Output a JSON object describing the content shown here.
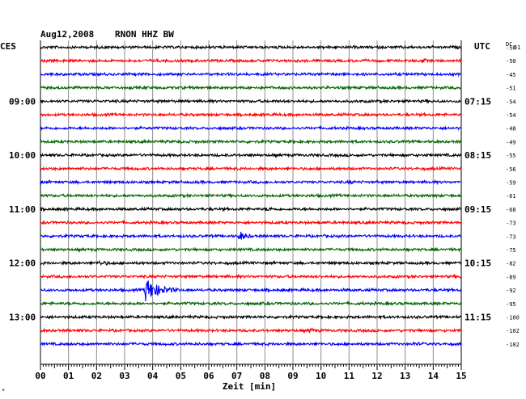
{
  "chart_data": {
    "type": "line",
    "title": "Aug12,2008",
    "station": "RNON HHZ BW",
    "left_label": "CES",
    "right_label": "UTC",
    "dc_label": "DC",
    "dc_sub": "51",
    "xlabel": "Zeit [min]",
    "xlim": [
      0,
      15
    ],
    "x_ticks": [
      "00",
      "01",
      "02",
      "03",
      "04",
      "05",
      "06",
      "07",
      "08",
      "09",
      "10",
      "11",
      "12",
      "13",
      "14",
      "15"
    ],
    "grid": true,
    "row_colors": [
      "#000000",
      "#ff0000",
      "#0000ff",
      "#006400"
    ],
    "left_hour_labels": [
      {
        "row": 4,
        "text": "09:00"
      },
      {
        "row": 8,
        "text": "10:00"
      },
      {
        "row": 12,
        "text": "11:00"
      },
      {
        "row": 16,
        "text": "12:00"
      },
      {
        "row": 20,
        "text": "13:00"
      }
    ],
    "right_hour_labels": [
      {
        "row": 4,
        "text": "07:15"
      },
      {
        "row": 8,
        "text": "08:15"
      },
      {
        "row": 12,
        "text": "09:15"
      },
      {
        "row": 16,
        "text": "10:15"
      },
      {
        "row": 20,
        "text": "11:15"
      }
    ],
    "dc_values": [
      "-50",
      "-50",
      "-45",
      "-51",
      "-54",
      "-54",
      "-48",
      "-49",
      "-55",
      "-56",
      "-59",
      "-61",
      "-68",
      "-73",
      "-73",
      "-75",
      "-82",
      "-89",
      "-92",
      "-95",
      "-100",
      "-102",
      "-102"
    ],
    "events": [
      {
        "row": 1,
        "minute": 13.6,
        "amplitude": 2.0,
        "duration_min": 0.4
      },
      {
        "row": 10,
        "minute": 11.0,
        "amplitude": 1.3,
        "duration_min": 0.3
      },
      {
        "row": 12,
        "minute": 8.1,
        "amplitude": 1.6,
        "duration_min": 0.3
      },
      {
        "row": 14,
        "minute": 7.1,
        "amplitude": 5.5,
        "duration_min": 0.5
      },
      {
        "row": 16,
        "minute": 2.1,
        "amplitude": 1.6,
        "duration_min": 0.8
      },
      {
        "row": 18,
        "minute": 3.75,
        "amplitude": 14,
        "duration_min": 1.2
      },
      {
        "row": 21,
        "minute": 9.6,
        "amplitude": 2.2,
        "duration_min": 0.4
      },
      {
        "row": 22,
        "minute": 13.3,
        "amplitude": 1.4,
        "duration_min": 0.3
      }
    ],
    "footer_mark": "*"
  }
}
